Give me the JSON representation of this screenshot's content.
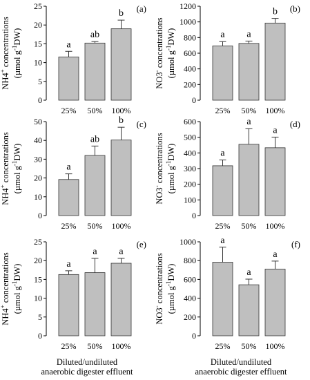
{
  "x_axis_caption": [
    "Diluted/undiluted",
    "anaerobic digester effluent"
  ],
  "chart_data": [
    {
      "type": "bar",
      "panel": "(a)",
      "ylabel_main": "NH4+ concentrations",
      "ylabel_unit": "(µmol g-1DW)",
      "categories": [
        "25%",
        "50%",
        "100%"
      ],
      "values": [
        11.5,
        15.2,
        19.0
      ],
      "errors": [
        1.5,
        0.4,
        2.3
      ],
      "letters": [
        "a",
        "ab",
        "b"
      ],
      "ylim": [
        0,
        25
      ],
      "yticks": [
        0,
        5,
        10,
        15,
        20,
        25
      ],
      "bar_color": "#bfbfbf"
    },
    {
      "type": "bar",
      "panel": "(b)",
      "ylabel_main": "NO3- concentrations",
      "ylabel_unit": "(µmol g-1DW)",
      "categories": [
        "25%",
        "50%",
        "100%"
      ],
      "values": [
        693,
        725,
        985
      ],
      "errors": [
        55,
        30,
        60
      ],
      "letters": [
        "a",
        "a",
        "b"
      ],
      "ylim": [
        0,
        1200
      ],
      "yticks": [
        0,
        200,
        400,
        600,
        800,
        1000,
        1200
      ],
      "bar_color": "#bfbfbf"
    },
    {
      "type": "bar",
      "panel": "(c)",
      "ylabel_main": "NH4+ concentrations",
      "ylabel_unit": "(µmol g-1DW)",
      "categories": [
        "25%",
        "50%",
        "100%"
      ],
      "values": [
        19.2,
        32.0,
        40.2
      ],
      "errors": [
        3.0,
        5.0,
        6.8
      ],
      "letters": [
        "a",
        "ab",
        "b"
      ],
      "ylim": [
        0,
        50
      ],
      "yticks": [
        0,
        10,
        20,
        30,
        40,
        50
      ],
      "bar_color": "#bfbfbf"
    },
    {
      "type": "bar",
      "panel": "(d)",
      "ylabel_main": "NO3- concentrations",
      "ylabel_unit": "(µmol g-1DW)",
      "categories": [
        "25%",
        "50%",
        "100%"
      ],
      "values": [
        318,
        455,
        433
      ],
      "errors": [
        37,
        100,
        68
      ],
      "letters": [
        "a",
        "a",
        "a"
      ],
      "ylim": [
        0,
        600
      ],
      "yticks": [
        0,
        100,
        200,
        300,
        400,
        500,
        600
      ],
      "bar_color": "#bfbfbf"
    },
    {
      "type": "bar",
      "panel": "(e)",
      "ylabel_main": "NH4+ concentrations",
      "ylabel_unit": "(µmol g-1DW)",
      "categories": [
        "25%",
        "50%",
        "100%"
      ],
      "values": [
        16.3,
        16.8,
        19.3
      ],
      "errors": [
        1.0,
        3.8,
        1.3
      ],
      "letters": [
        "a",
        "a",
        "a"
      ],
      "ylim": [
        0,
        25
      ],
      "yticks": [
        0,
        5,
        10,
        15,
        20,
        25
      ],
      "bar_color": "#bfbfbf"
    },
    {
      "type": "bar",
      "panel": "(f)",
      "ylabel_main": "NO3- concentrations",
      "ylabel_unit": "(µmol g-1DW)",
      "categories": [
        "25%",
        "50%",
        "100%"
      ],
      "values": [
        783,
        543,
        710
      ],
      "errors": [
        160,
        60,
        85
      ],
      "letters": [
        "a",
        "a",
        "a"
      ],
      "ylim": [
        0,
        1000
      ],
      "yticks": [
        0,
        200,
        400,
        600,
        800,
        1000
      ],
      "bar_color": "#bfbfbf"
    }
  ]
}
